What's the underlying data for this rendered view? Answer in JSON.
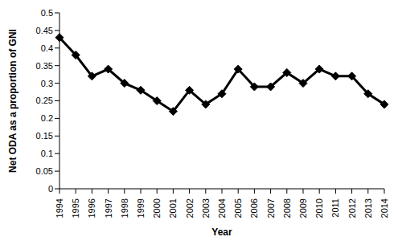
{
  "chart_data": {
    "type": "line",
    "x_label": "Year",
    "y_label": "Net ODA as a proportion of GNI",
    "categories": [
      "1994",
      "1995",
      "1996",
      "1997",
      "1998",
      "1999",
      "2000",
      "2001",
      "2002",
      "2003",
      "2004",
      "2005",
      "2006",
      "2007",
      "2008",
      "2009",
      "2010",
      "2011",
      "2012",
      "2013",
      "2014"
    ],
    "values": [
      0.43,
      0.38,
      0.32,
      0.34,
      0.3,
      0.28,
      0.25,
      0.22,
      0.28,
      0.24,
      0.27,
      0.34,
      0.29,
      0.29,
      0.33,
      0.3,
      0.34,
      0.32,
      0.32,
      0.27,
      0.24
    ],
    "color": "#000000",
    "marker": "diamond",
    "ylim": [
      0,
      0.5
    ],
    "yticks": [
      0,
      0.05,
      0.1,
      0.15,
      0.2,
      0.25,
      0.3,
      0.35,
      0.4,
      0.45,
      0.5
    ],
    "grid": false
  }
}
